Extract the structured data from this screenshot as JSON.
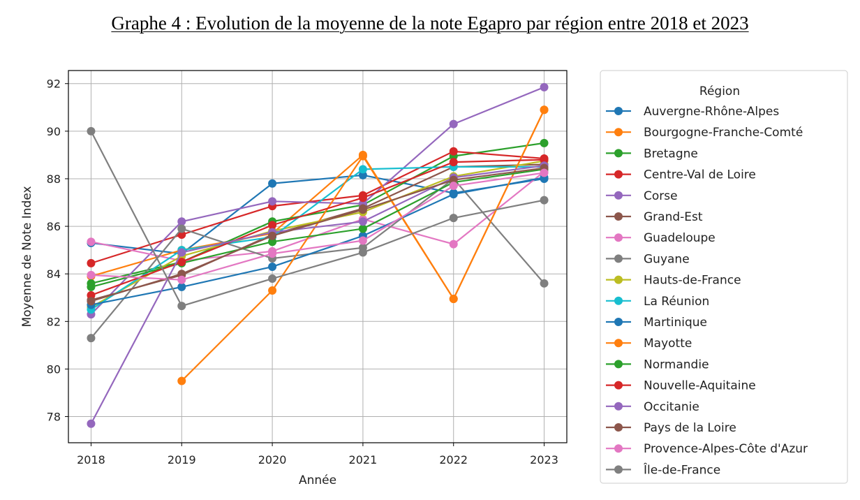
{
  "title": "Graphe 4 : Evolution de la moyenne de la note Egapro par région entre 2018 et 2023",
  "chart_data": {
    "type": "line",
    "xlabel": "Année",
    "ylabel": "Moyenne de Note Index",
    "x": [
      2018,
      2019,
      2020,
      2021,
      2022,
      2023
    ],
    "x_ticks": [
      "2018",
      "2019",
      "2020",
      "2021",
      "2022",
      "2023"
    ],
    "xlim": [
      2017.75,
      2023.25
    ],
    "ylim": [
      76.9,
      92.55
    ],
    "y_ticks": [
      78,
      80,
      82,
      84,
      86,
      88,
      90,
      92
    ],
    "grid": true,
    "legend_title": "Région",
    "legend_position": "outside-right",
    "series": [
      {
        "name": "Auvergne-Rhône-Alpes",
        "color": "#1f77b4",
        "values": [
          85.3,
          84.85,
          87.8,
          88.15,
          87.4,
          88.0
        ]
      },
      {
        "name": "Bourgogne-Franche-Comté",
        "color": "#ff7f0e",
        "values": [
          83.9,
          85.0,
          85.7,
          89.0,
          82.95,
          90.9
        ]
      },
      {
        "name": "Bretagne",
        "color": "#2ca02c",
        "values": [
          83.6,
          84.5,
          86.2,
          86.9,
          88.95,
          89.5
        ]
      },
      {
        "name": "Centre-Val de Loire",
        "color": "#d62728",
        "values": [
          84.45,
          85.65,
          86.85,
          87.3,
          89.15,
          88.85
        ]
      },
      {
        "name": "Corse",
        "color": "#9467bd",
        "values": [
          82.3,
          86.2,
          87.05,
          86.95,
          90.3,
          91.85
        ]
      },
      {
        "name": "Grand-Est",
        "color": "#8c564b",
        "values": [
          82.9,
          83.95,
          85.65,
          86.75,
          88.5,
          88.6
        ]
      },
      {
        "name": "Guadeloupe",
        "color": "#e377c2",
        "values": [
          85.35,
          84.55,
          84.95,
          86.3,
          85.25,
          88.3
        ]
      },
      {
        "name": "Guyane",
        "color": "#7f7f7f",
        "values": [
          81.3,
          85.9,
          84.65,
          85.1,
          88.0,
          83.6
        ]
      },
      {
        "name": "Hauts-de-France",
        "color": "#bcbd22",
        "values": [
          82.6,
          84.75,
          85.8,
          86.6,
          88.1,
          88.75
        ]
      },
      {
        "name": "La Réunion",
        "color": "#17becf",
        "values": [
          82.5,
          85.0,
          85.55,
          88.4,
          88.5,
          88.5
        ]
      },
      {
        "name": "Martinique",
        "color": "#1f77b4",
        "values": [
          82.7,
          83.45,
          84.3,
          85.6,
          87.35,
          88.05
        ]
      },
      {
        "name": "Mayotte",
        "color": "#ff7f0e",
        "values": [
          null,
          79.5,
          83.3,
          88.95,
          82.95,
          90.9
        ]
      },
      {
        "name": "Normandie",
        "color": "#2ca02c",
        "values": [
          83.45,
          84.45,
          85.35,
          85.9,
          87.85,
          88.4
        ]
      },
      {
        "name": "Nouvelle-Aquitaine",
        "color": "#d62728",
        "values": [
          83.1,
          84.5,
          86.05,
          87.2,
          88.7,
          88.8
        ]
      },
      {
        "name": "Occitanie",
        "color": "#9467bd",
        "values": [
          77.7,
          84.9,
          85.75,
          86.2,
          88.05,
          88.55
        ]
      },
      {
        "name": "Pays de la Loire",
        "color": "#8c564b",
        "values": [
          82.85,
          84.0,
          85.6,
          86.7,
          87.95,
          88.45
        ]
      },
      {
        "name": "Provence-Alpes-Côte d'Azur",
        "color": "#e377c2",
        "values": [
          83.95,
          83.75,
          84.85,
          85.4,
          87.7,
          88.25
        ]
      },
      {
        "name": "Île-de-France",
        "color": "#7f7f7f",
        "values": [
          90.0,
          82.65,
          83.8,
          84.9,
          86.35,
          87.1
        ]
      }
    ]
  }
}
